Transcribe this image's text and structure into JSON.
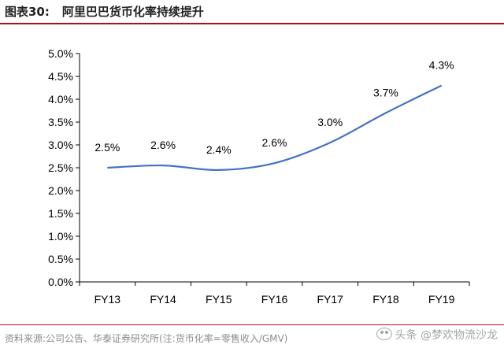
{
  "header": {
    "figure_label": "图表30:",
    "title": "阿里巴巴货币化率持续提升"
  },
  "footer": {
    "source": "资料来源:公司公告、华泰证券研究所(注:货币化率=零售收入/GMV)",
    "watermark": "头条 @梦欢物流沙龙",
    "watermark_icon": "wechat-icon"
  },
  "colors": {
    "line": "#4472c4",
    "rule": "#b20f19"
  },
  "chart_data": {
    "type": "line",
    "categories": [
      "FY13",
      "FY14",
      "FY15",
      "FY16",
      "FY17",
      "FY18",
      "FY19"
    ],
    "values": [
      2.5,
      2.55,
      2.45,
      2.6,
      3.05,
      3.7,
      4.3
    ],
    "data_labels": [
      "2.5%",
      "2.6%",
      "2.4%",
      "2.6%",
      "3.0%",
      "3.7%",
      "4.3%"
    ],
    "ylim": [
      0,
      5
    ],
    "yticks": [
      "0.0%",
      "0.5%",
      "1.0%",
      "1.5%",
      "2.0%",
      "2.5%",
      "3.0%",
      "3.5%",
      "4.0%",
      "4.5%",
      "5.0%"
    ],
    "smooth": true,
    "grid": false,
    "legend": "none"
  }
}
